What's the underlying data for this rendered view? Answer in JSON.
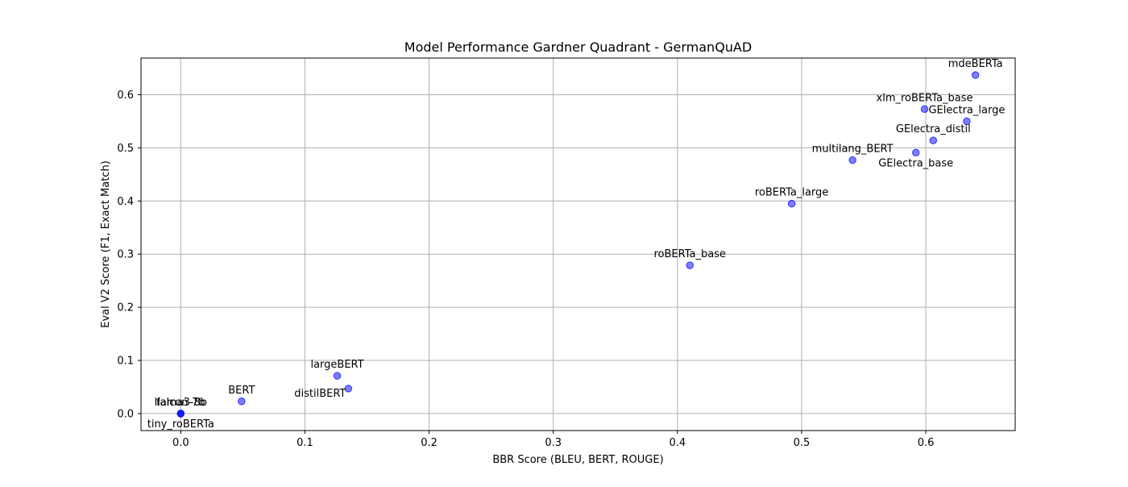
{
  "chart_data": {
    "type": "scatter",
    "title": "Model Performance Gardner Quadrant - GermanQuAD",
    "xlabel": "BBR Score (BLEU, BERT, ROUGE)",
    "ylabel": "Eval V2 Score (F1, Exact Match)",
    "xlim": [
      -0.032,
      0.672
    ],
    "ylim": [
      -0.032,
      0.669
    ],
    "xticks": [
      0.0,
      0.1,
      0.2,
      0.3,
      0.4,
      0.5,
      0.6
    ],
    "xtick_labels": [
      "0.0",
      "0.1",
      "0.2",
      "0.3",
      "0.4",
      "0.5",
      "0.6"
    ],
    "yticks": [
      0.0,
      0.1,
      0.2,
      0.3,
      0.4,
      0.5,
      0.6
    ],
    "ytick_labels": [
      "0.0",
      "0.1",
      "0.2",
      "0.3",
      "0.4",
      "0.5",
      "0.6"
    ],
    "grid": true,
    "marker_color": "#0000ff",
    "marker_opacity": 0.5,
    "points": [
      {
        "label": "mdeBERTa",
        "x": 0.64,
        "y": 0.637,
        "label_pos": "above"
      },
      {
        "label": "xlm_roBERTa_base",
        "x": 0.599,
        "y": 0.573,
        "label_pos": "above"
      },
      {
        "label": "GElectra_large",
        "x": 0.633,
        "y": 0.55,
        "label_pos": "above"
      },
      {
        "label": "GElectra_distil",
        "x": 0.606,
        "y": 0.514,
        "label_pos": "above"
      },
      {
        "label": "GElectra_base",
        "x": 0.592,
        "y": 0.491,
        "label_pos": "below"
      },
      {
        "label": "multilang_BERT",
        "x": 0.541,
        "y": 0.477,
        "label_pos": "above"
      },
      {
        "label": "roBERTa_large",
        "x": 0.492,
        "y": 0.395,
        "label_pos": "above"
      },
      {
        "label": "roBERTa_base",
        "x": 0.41,
        "y": 0.279,
        "label_pos": "above"
      },
      {
        "label": "largeBERT",
        "x": 0.126,
        "y": 0.071,
        "label_pos": "above"
      },
      {
        "label": "distilBERT",
        "x": 0.135,
        "y": 0.047,
        "label_pos": "below-left"
      },
      {
        "label": "BERT",
        "x": 0.049,
        "y": 0.023,
        "label_pos": "above"
      },
      {
        "label": "falcon-7b",
        "x": 0.0,
        "y": 0.0,
        "label_pos": "above"
      },
      {
        "label": "llama3-8b",
        "x": 0.0,
        "y": 0.0,
        "label_pos": "above"
      },
      {
        "label": "tiny_roBERTa",
        "x": 0.0,
        "y": 0.0,
        "label_pos": "below"
      }
    ]
  }
}
